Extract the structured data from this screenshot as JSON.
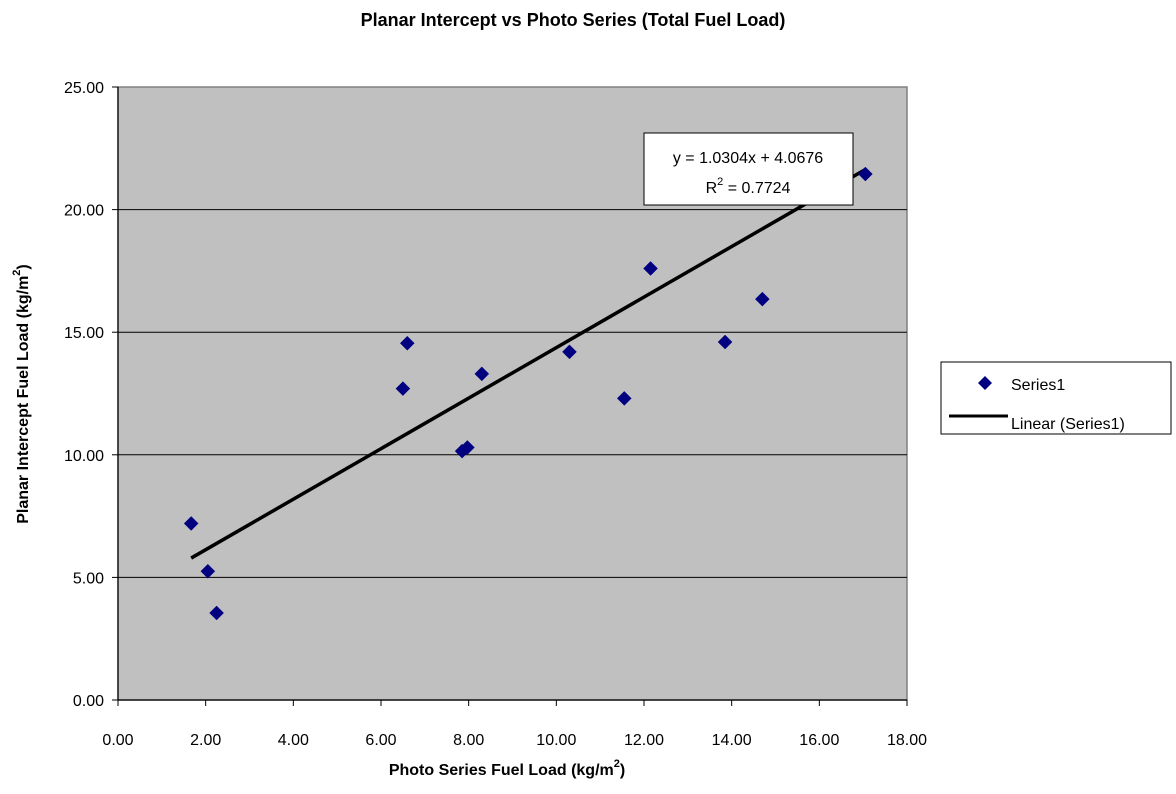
{
  "chart_data": {
    "type": "scatter",
    "title": "Planar Intercept vs Photo Series (Total Fuel Load)",
    "xlabel": "Photo Series Fuel Load (kg/m",
    "xlabel_sup": "2",
    "xlabel_end": ")",
    "ylabel": "Planar Intercept Fuel Load (kg/m",
    "ylabel_sup": "2",
    "ylabel_end": ")",
    "xlim": [
      0,
      18
    ],
    "ylim": [
      0,
      25
    ],
    "x_ticks": [
      "0.00",
      "2.00",
      "4.00",
      "6.00",
      "8.00",
      "10.00",
      "12.00",
      "14.00",
      "16.00",
      "18.00"
    ],
    "y_ticks": [
      "0.00",
      "5.00",
      "10.00",
      "15.00",
      "20.00",
      "25.00"
    ],
    "x_tick_values": [
      0,
      2,
      4,
      6,
      8,
      10,
      12,
      14,
      16,
      18
    ],
    "y_tick_values": [
      0,
      5,
      10,
      15,
      20,
      25
    ],
    "grid": "horizontal",
    "plot_background": "#c0c0c0",
    "marker_color": "#000080",
    "trendline_color": "#000000",
    "legend_position": "right",
    "series": [
      {
        "name": "Series1",
        "points": [
          {
            "x": 1.67,
            "y": 7.2
          },
          {
            "x": 2.05,
            "y": 5.25
          },
          {
            "x": 2.25,
            "y": 3.55
          },
          {
            "x": 6.5,
            "y": 12.7
          },
          {
            "x": 6.6,
            "y": 14.55
          },
          {
            "x": 7.85,
            "y": 10.15
          },
          {
            "x": 7.97,
            "y": 10.3
          },
          {
            "x": 8.3,
            "y": 13.3
          },
          {
            "x": 10.3,
            "y": 14.2
          },
          {
            "x": 11.55,
            "y": 12.3
          },
          {
            "x": 12.15,
            "y": 17.6
          },
          {
            "x": 13.85,
            "y": 14.6
          },
          {
            "x": 14.7,
            "y": 16.35
          },
          {
            "x": 17.05,
            "y": 21.45
          }
        ]
      }
    ],
    "trendline": {
      "name": "Linear (Series1)",
      "slope": 1.0304,
      "intercept": 4.0676,
      "x_range": [
        1.67,
        17.05
      ],
      "equation": "y = 1.0304x + 4.0676",
      "r2_label": "R",
      "r2_sup": "2",
      "r2_value": " = 0.7724"
    },
    "legend": [
      {
        "label": "Series1",
        "kind": "marker"
      },
      {
        "label": "Linear (Series1)",
        "kind": "line"
      }
    ]
  }
}
